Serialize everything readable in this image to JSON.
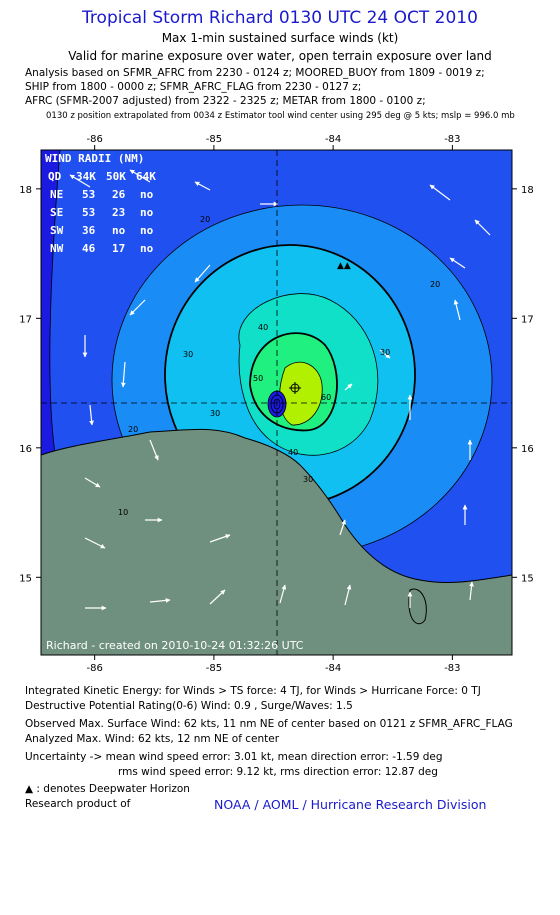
{
  "header": {
    "title": "Tropical Storm Richard 0130 UTC 24 OCT 2010",
    "subtitle1": "Max 1-min sustained surface winds (kt)",
    "subtitle2": "Valid for marine exposure over water, open terrain exposure over land",
    "analysis_lines": [
      "Analysis based on SFMR_AFRC from 2230 - 0124 z; MOORED_BUOY from 1809 - 0019 z;",
      "SHIP from 1800 - 0000 z; SFMR_AFRC_FLAG from 2230 - 0127 z;",
      "AFRC (SFMR-2007 adjusted) from 2322 - 2325 z; METAR from 1800 - 0100 z;"
    ],
    "position_note": "0130 z position extrapolated from 0034 z Estimator tool wind center using 295 deg @ 5 kts; mslp = 996.0 mb"
  },
  "chart_data": {
    "type": "contour",
    "xaxis_ticks": [
      "-86",
      "-85",
      "-84",
      "-83"
    ],
    "yaxis_ticks": [
      "18",
      "17",
      "16",
      "15"
    ],
    "xlim": [
      -86.45,
      -82.5
    ],
    "ylim": [
      14.4,
      18.3
    ],
    "center": {
      "lon": -84.45,
      "lat": 16.32
    },
    "max_wind_location": {
      "lon": -84.27,
      "lat": 16.45
    },
    "contour_labels": [
      "10",
      "20",
      "20",
      "20",
      "30",
      "30",
      "30",
      "30",
      "40",
      "40",
      "50",
      "60"
    ],
    "wind_radii_table": {
      "title": "WIND RADII (NM)",
      "header": [
        "QD",
        "34K",
        "50K",
        "64K"
      ],
      "rows": [
        [
          "NE",
          "53",
          "26",
          "no"
        ],
        [
          "SE",
          "53",
          "23",
          "no"
        ],
        [
          "SW",
          "36",
          "no",
          "no"
        ],
        [
          "NW",
          "46",
          "17",
          "no"
        ]
      ]
    },
    "created_label": "Richard - created on 2010-10-24 01:32:26 UTC",
    "colors": {
      "lt10": "#1a1ae0",
      "b10_20": "#2050f0",
      "b20_30": "#1a8cf5",
      "b30_40": "#10c0f0",
      "b40_50": "#10e0c8",
      "b50_60": "#20f080",
      "gt60": "#b0f000",
      "land": "#6f8f7f"
    }
  },
  "footer": {
    "lines": [
      "Integrated Kinetic Energy:  for Winds > TS force: 4 TJ,  for Winds > Hurricane Force: 0 TJ",
      "Destructive Potential Rating(0-6)   Wind: 0.9 , Surge/Waves: 1.5",
      "Observed Max. Surface Wind: 62 kts, 11 nm NE of center based on 0121 z SFMR_AFRC_FLAG",
      "Analyzed Max. Wind: 62 kts, 12 nm NE of center",
      "Uncertainty -> mean wind speed error: 3.01 kt,   mean direction error:  -1.59 deg",
      "rms wind speed error: 9.12 kt,   rms direction error: 12.87 deg",
      ": denotes Deepwater Horizon",
      "Research product of"
    ],
    "credit": "NOAA / AOML / Hurricane Research Division"
  }
}
